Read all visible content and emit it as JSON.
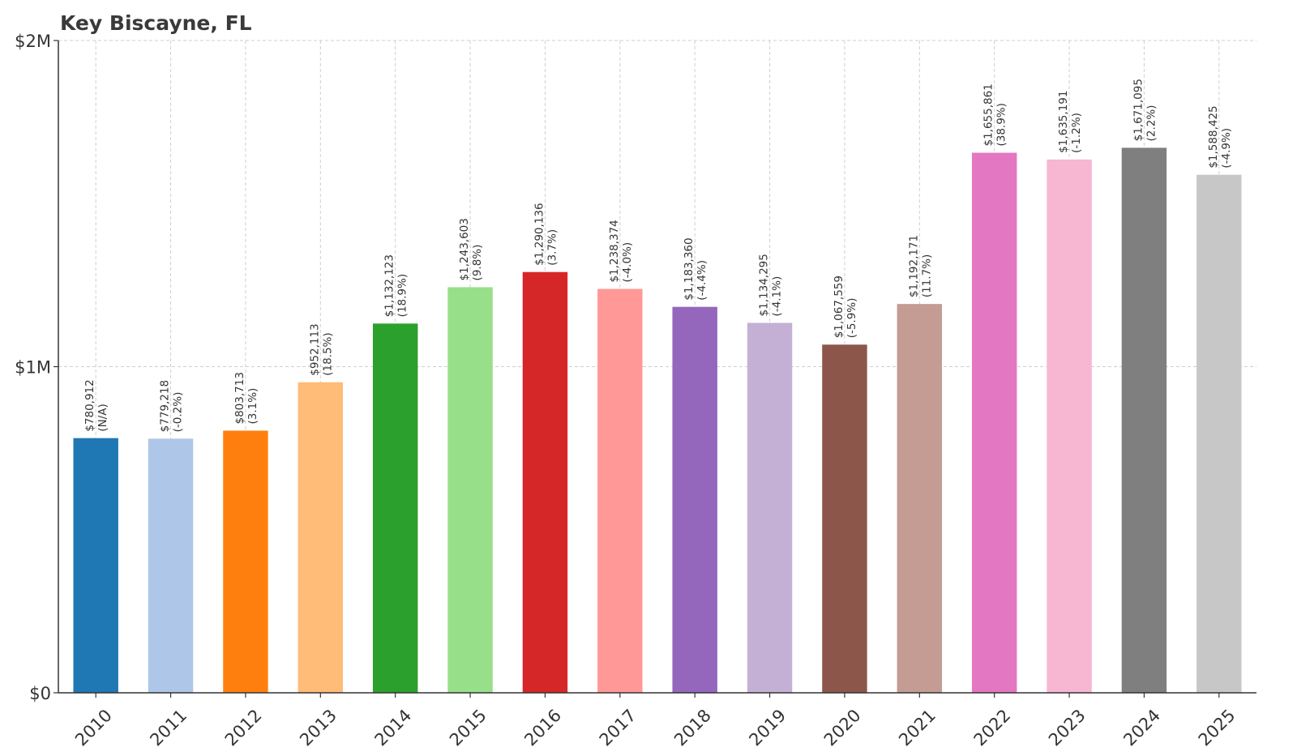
{
  "chart_data": {
    "type": "bar",
    "title": "Key Biscayne, FL",
    "xlabel": "",
    "ylabel": "",
    "ylim": [
      0,
      2000000
    ],
    "yticks": [
      {
        "value": 0,
        "label": "$0"
      },
      {
        "value": 1000000,
        "label": "$1M"
      },
      {
        "value": 2000000,
        "label": "$2M"
      }
    ],
    "grid": true,
    "categories": [
      "2010",
      "2011",
      "2012",
      "2013",
      "2014",
      "2015",
      "2016",
      "2017",
      "2018",
      "2019",
      "2020",
      "2021",
      "2022",
      "2023",
      "2024",
      "2025"
    ],
    "values": [
      780912,
      779218,
      803713,
      952113,
      1132123,
      1243603,
      1290136,
      1238374,
      1183360,
      1134295,
      1067559,
      1192171,
      1655861,
      1635191,
      1671095,
      1588425
    ],
    "value_labels": [
      "$780,912",
      "$779,218",
      "$803,713",
      "$952,113",
      "$1,132,123",
      "$1,243,603",
      "$1,290,136",
      "$1,238,374",
      "$1,183,360",
      "$1,134,295",
      "$1,067,559",
      "$1,192,171",
      "$1,655,861",
      "$1,635,191",
      "$1,671,095",
      "$1,588,425"
    ],
    "change_labels": [
      "(N/A)",
      "(-0.2%)",
      "(3.1%)",
      "(18.5%)",
      "(18.9%)",
      "(9.8%)",
      "(3.7%)",
      "(-4.0%)",
      "(-4.4%)",
      "(-4.1%)",
      "(-5.9%)",
      "(11.7%)",
      "(38.9%)",
      "(-1.2%)",
      "(2.2%)",
      "(-4.9%)"
    ],
    "colors": [
      "#1f77b4",
      "#aec7e8",
      "#ff7f0e",
      "#ffbb78",
      "#2ca02c",
      "#98df8a",
      "#d62728",
      "#ff9896",
      "#9467bd",
      "#c5b0d5",
      "#8c564b",
      "#c49c94",
      "#e377c2",
      "#f7b6d2",
      "#7f7f7f",
      "#c7c7c7"
    ]
  }
}
